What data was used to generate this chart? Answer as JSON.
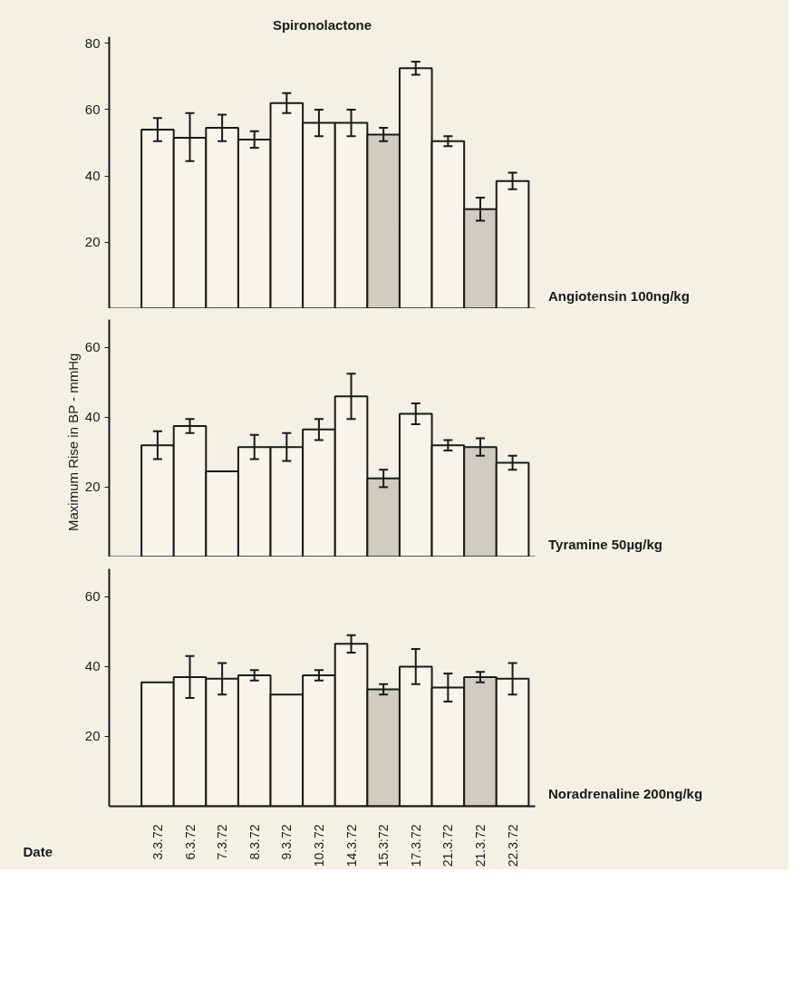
{
  "chart_data": [
    {
      "type": "bar",
      "title": "Spironolactone",
      "categories": [
        null,
        null,
        null,
        null,
        null,
        null,
        null,
        null,
        null,
        null,
        null,
        null
      ],
      "values": [
        54,
        51.5,
        54.5,
        51,
        62,
        56,
        56,
        52.5,
        72.5,
        50.5,
        30,
        38.5
      ],
      "errors": [
        3.5,
        [
          44.5,
          59
        ],
        4,
        2.5,
        3,
        4,
        4,
        2,
        2,
        1.5,
        3.5,
        2.5
      ],
      "colors": [
        "#f7f5ea",
        "#f7f5ea",
        "#f7f5ea",
        "#f7f5ea",
        "#f7f5ea",
        "#f7f5ea",
        "#f7f5ea",
        "#cfcdc0",
        "#f7f5ea",
        "#f7f5ea",
        "#cfcdc0",
        "#f7f5ea"
      ],
      "ylim": [
        0,
        82
      ],
      "yticks": [
        20,
        40,
        60,
        80
      ],
      "annotations": [
        "Angiotensin  100ng/kg"
      ],
      "tick_labels": "y"
    },
    {
      "type": "bar",
      "ylabel": "Maximum Rise in BP  -  mmHg",
      "categories": [
        null,
        null,
        null,
        null,
        null,
        null,
        null,
        null,
        null,
        null,
        null,
        null
      ],
      "values": [
        32,
        37.5,
        24.5,
        31.5,
        31.5,
        36.5,
        46,
        22.5,
        41,
        32,
        31.5,
        27
      ],
      "errors": [
        4,
        2,
        null,
        3.5,
        4,
        3,
        6.5,
        2.5,
        3,
        1.5,
        2.5,
        2
      ],
      "colors": [
        "#f7f5ea",
        "#f7f5ea",
        "#f7f5ea",
        "#f7f5ea",
        "#f7f5ea",
        "#f7f5ea",
        "#f7f5ea",
        "#cfcdc0",
        "#f7f5ea",
        "#f7f5ea",
        "#cfcdc0",
        "#f7f5ea"
      ],
      "ylim": [
        0,
        68
      ],
      "yticks": [
        20,
        40,
        60
      ],
      "annotations": [
        "Tyramine  50µg/kg"
      ],
      "tick_labels": "y"
    },
    {
      "type": "bar",
      "xlabel": "Date",
      "categories": [
        "3.3.72",
        "6.3.72",
        "7.3.72",
        "8.3.72",
        "9.3.72",
        "10.3.72",
        "14.3.72",
        "15.3:72",
        "17.3.72",
        "21.3.72",
        "21.3.72",
        "22.3.72"
      ],
      "values": [
        35.5,
        37,
        36.5,
        37.5,
        32,
        37.5,
        46.5,
        33.5,
        40,
        34,
        37,
        36.5
      ],
      "errors": [
        null,
        6,
        4.5,
        1.5,
        null,
        1.5,
        2.5,
        1.5,
        5,
        4,
        1.5,
        4.5
      ],
      "colors": [
        "#f7f5ea",
        "#f7f5ea",
        "#f7f5ea",
        "#f7f5ea",
        "#f7f5ea",
        "#f7f5ea",
        "#f7f5ea",
        "#cfcdc0",
        "#f7f5ea",
        "#f7f5ea",
        "#cfcdc0",
        "#f7f5ea"
      ],
      "ylim": [
        0,
        68
      ],
      "yticks": [
        20,
        40,
        60
      ],
      "annotations": [
        "Noradrenaline 200ng/kg"
      ]
    }
  ]
}
